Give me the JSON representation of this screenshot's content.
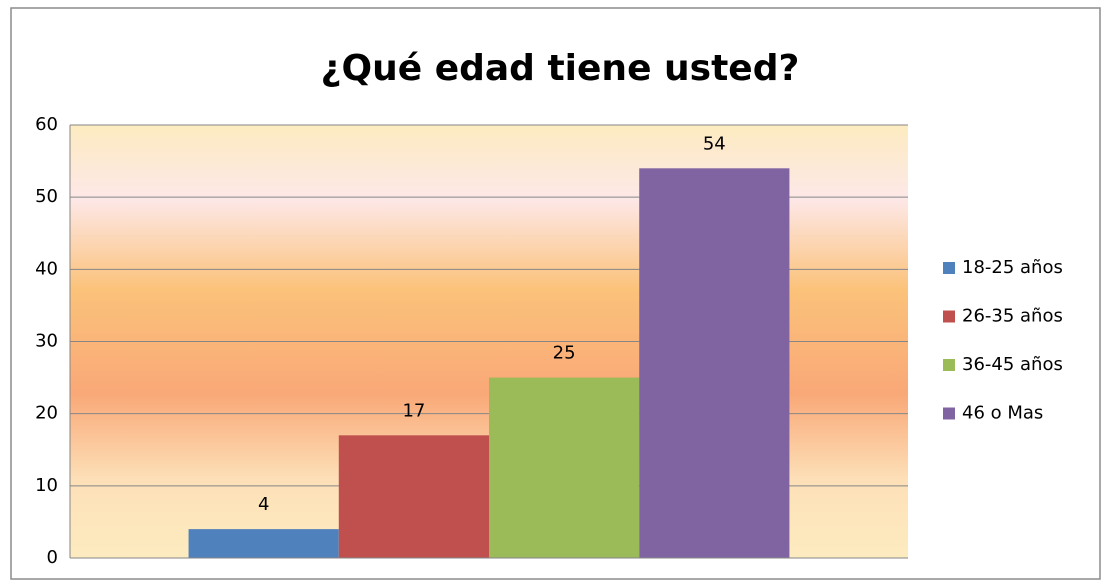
{
  "chart_data": {
    "type": "bar",
    "title": "¿Qué edad tiene usted?",
    "categories": [
      null
    ],
    "series": [
      {
        "name": "18-25 años",
        "color": "#4f81bd",
        "values": [
          4
        ]
      },
      {
        "name": "26-35 años",
        "color": "#c0504d",
        "values": [
          17
        ]
      },
      {
        "name": "36-45 años",
        "color": "#9bbb59",
        "values": [
          25
        ]
      },
      {
        "name": "46 o Mas",
        "color": "#8064a2",
        "values": [
          54
        ]
      }
    ],
    "ylim": [
      0,
      60
    ],
    "yticks": [
      0,
      10,
      20,
      30,
      40,
      50,
      60
    ],
    "grid": true,
    "legend": "right"
  }
}
